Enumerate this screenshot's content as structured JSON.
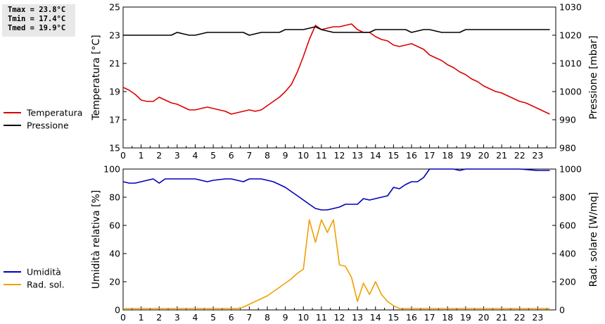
{
  "stats": {
    "tmax": "Tmax = 23.8°C",
    "tmin": "Tmin = 17.4°C",
    "tmed": "Tmed = 19.9°C"
  },
  "chart_data": [
    {
      "type": "line",
      "xlabel": "",
      "ylabel": "Temperatura [°C]",
      "y2label": "Pressione [mbar]",
      "xlim": [
        0,
        24
      ],
      "xticks": [
        "0",
        "1",
        "2",
        "3",
        "4",
        "5",
        "6",
        "7",
        "8",
        "9",
        "10",
        "11",
        "12",
        "13",
        "14",
        "15",
        "16",
        "17",
        "18",
        "19",
        "20",
        "21",
        "22",
        "23"
      ],
      "ylim": [
        15,
        25
      ],
      "yticks": [
        "15",
        "17",
        "19",
        "21",
        "23",
        "25"
      ],
      "y2lim": [
        980,
        1030
      ],
      "y2ticks": [
        "980",
        "990",
        "1000",
        "1010",
        "1020",
        "1030"
      ],
      "legend_placement": "left",
      "series": [
        {
          "name": "Temperatura",
          "axis": "left",
          "color": "#dd0000",
          "x": [
            0,
            0.33,
            0.67,
            1,
            1.33,
            1.67,
            2,
            2.33,
            2.67,
            3,
            3.33,
            3.67,
            4,
            4.33,
            4.67,
            5,
            5.33,
            5.67,
            6,
            6.33,
            6.67,
            7,
            7.33,
            7.67,
            8,
            8.33,
            8.67,
            9,
            9.33,
            9.67,
            10,
            10.33,
            10.67,
            11,
            11.33,
            11.67,
            12,
            12.33,
            12.67,
            13,
            13.33,
            13.67,
            14,
            14.33,
            14.67,
            15,
            15.33,
            15.67,
            16,
            16.33,
            16.67,
            17,
            17.33,
            17.67,
            18,
            18.33,
            18.67,
            19,
            19.33,
            19.67,
            20,
            20.33,
            20.67,
            21,
            21.33,
            21.67,
            22,
            22.33,
            22.67,
            23,
            23.33,
            23.67
          ],
          "y": [
            19.3,
            19.1,
            18.8,
            18.4,
            18.3,
            18.3,
            18.6,
            18.4,
            18.2,
            18.1,
            17.9,
            17.7,
            17.7,
            17.8,
            17.9,
            17.8,
            17.7,
            17.6,
            17.4,
            17.5,
            17.6,
            17.7,
            17.6,
            17.7,
            18.0,
            18.3,
            18.6,
            19.0,
            19.5,
            20.4,
            21.5,
            22.7,
            23.7,
            23.4,
            23.5,
            23.6,
            23.6,
            23.7,
            23.8,
            23.4,
            23.2,
            23.2,
            22.9,
            22.7,
            22.6,
            22.3,
            22.2,
            22.3,
            22.4,
            22.2,
            22.0,
            21.6,
            21.4,
            21.2,
            20.9,
            20.7,
            20.4,
            20.2,
            19.9,
            19.7,
            19.4,
            19.2,
            19.0,
            18.9,
            18.7,
            18.5,
            18.3,
            18.2,
            18.0,
            17.8,
            17.6,
            17.4
          ]
        },
        {
          "name": "Pressione",
          "axis": "right",
          "color": "#000000",
          "x": [
            0,
            0.67,
            1,
            1.67,
            2,
            2.67,
            3,
            3.33,
            3.67,
            4,
            4.33,
            4.67,
            5,
            5.67,
            6,
            6.67,
            7,
            7.33,
            7.67,
            8,
            8.33,
            8.67,
            9,
            9.33,
            9.67,
            10,
            10.67,
            11,
            11.33,
            11.67,
            12,
            12.67,
            13,
            13.67,
            14,
            14.67,
            15,
            15.67,
            16,
            16.33,
            16.67,
            17,
            17.33,
            17.67,
            18,
            18.67,
            19,
            20,
            21,
            22,
            23,
            23.67
          ],
          "y": [
            1020,
            1020,
            1020,
            1020,
            1020,
            1020,
            1021,
            1020.5,
            1020,
            1020,
            1020.5,
            1021,
            1021,
            1021,
            1021,
            1021,
            1020,
            1020.5,
            1021,
            1021,
            1021,
            1021,
            1022,
            1022,
            1022,
            1022,
            1023,
            1022,
            1021.5,
            1021,
            1021,
            1021,
            1021,
            1021,
            1022,
            1022,
            1022,
            1022,
            1021,
            1021.5,
            1022,
            1022,
            1021.5,
            1021,
            1021,
            1021,
            1022,
            1022,
            1022,
            1022,
            1022,
            1022
          ]
        }
      ]
    },
    {
      "type": "line",
      "xlabel": "",
      "ylabel": "Umidità relativa [%]",
      "y2label": "Rad. solare [W/mq]",
      "xlim": [
        0,
        24
      ],
      "xticks": [
        "0",
        "1",
        "2",
        "3",
        "4",
        "5",
        "6",
        "7",
        "8",
        "9",
        "10",
        "11",
        "12",
        "13",
        "14",
        "15",
        "16",
        "17",
        "18",
        "19",
        "20",
        "21",
        "22",
        "23"
      ],
      "ylim": [
        0,
        100
      ],
      "yticks": [
        "0",
        "20",
        "40",
        "60",
        "80",
        "100"
      ],
      "y2lim": [
        0,
        1000
      ],
      "y2ticks": [
        "0",
        "200",
        "400",
        "600",
        "800",
        "1000"
      ],
      "legend_placement": "left",
      "series": [
        {
          "name": "Umidità",
          "axis": "left",
          "color": "#0000bb",
          "x": [
            0,
            0.33,
            0.67,
            1,
            1.33,
            1.67,
            2,
            2.33,
            2.67,
            3,
            3.67,
            4,
            4.67,
            5,
            5.67,
            6,
            6.67,
            7,
            7.33,
            7.67,
            8,
            8.33,
            8.67,
            9,
            9.33,
            9.67,
            10,
            10.33,
            10.67,
            11,
            11.33,
            11.67,
            12,
            12.33,
            12.67,
            13,
            13.33,
            13.67,
            14,
            14.33,
            14.67,
            15,
            15.33,
            15.67,
            16,
            16.33,
            16.67,
            17,
            17.33,
            17.67,
            18,
            18.33,
            18.67,
            19,
            19.5,
            20,
            21,
            22,
            23,
            23.67
          ],
          "y": [
            91,
            90,
            90,
            91,
            92,
            93,
            90,
            93,
            93,
            93,
            93,
            93,
            91,
            92,
            93,
            93,
            91,
            93,
            93,
            93,
            92,
            91,
            89,
            87,
            84,
            81,
            78,
            75,
            72,
            71,
            71,
            72,
            73,
            75,
            75,
            75,
            79,
            78,
            79,
            80,
            81,
            87,
            86,
            89,
            91,
            91,
            94,
            100,
            100,
            100,
            100,
            100,
            99,
            100,
            100,
            100,
            100,
            100,
            99,
            99
          ]
        },
        {
          "name": "Rad. sol.",
          "axis": "right",
          "color": "#f0a000",
          "x": [
            0,
            1,
            2,
            3,
            4,
            5,
            6,
            6.33,
            6.67,
            7,
            7.33,
            7.67,
            8,
            8.33,
            8.67,
            9,
            9.33,
            9.67,
            10,
            10.33,
            10.67,
            11,
            11.33,
            11.67,
            12,
            12.33,
            12.67,
            13,
            13.33,
            13.67,
            14,
            14.33,
            14.67,
            15,
            15.33,
            15.67,
            16,
            16.33,
            16.67,
            17,
            17.33,
            17.67,
            18,
            18.33,
            19,
            20,
            21,
            22,
            23,
            23.67
          ],
          "y": [
            10,
            10,
            10,
            10,
            10,
            10,
            10,
            10,
            20,
            40,
            60,
            80,
            100,
            130,
            160,
            190,
            220,
            260,
            290,
            640,
            480,
            640,
            550,
            640,
            320,
            310,
            230,
            60,
            190,
            110,
            200,
            110,
            60,
            30,
            10,
            10,
            10,
            10,
            10,
            10,
            10,
            10,
            10,
            10,
            10,
            10,
            10,
            10,
            10,
            10
          ]
        }
      ]
    }
  ]
}
